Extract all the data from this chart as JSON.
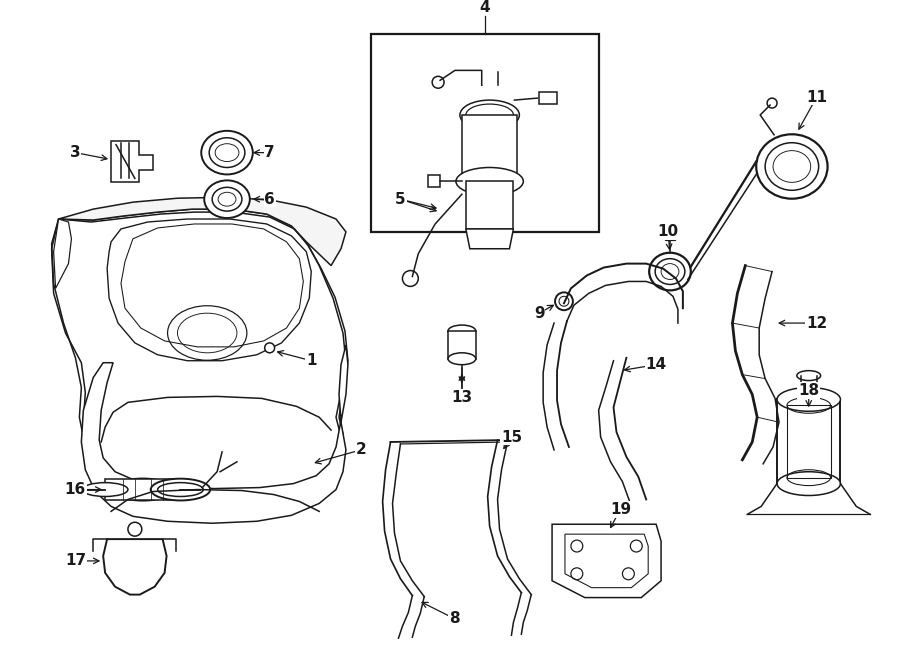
{
  "bg_color": "#ffffff",
  "line_color": "#1a1a1a",
  "figsize": [
    9.0,
    6.61
  ],
  "dpi": 100,
  "lw": 1.1
}
